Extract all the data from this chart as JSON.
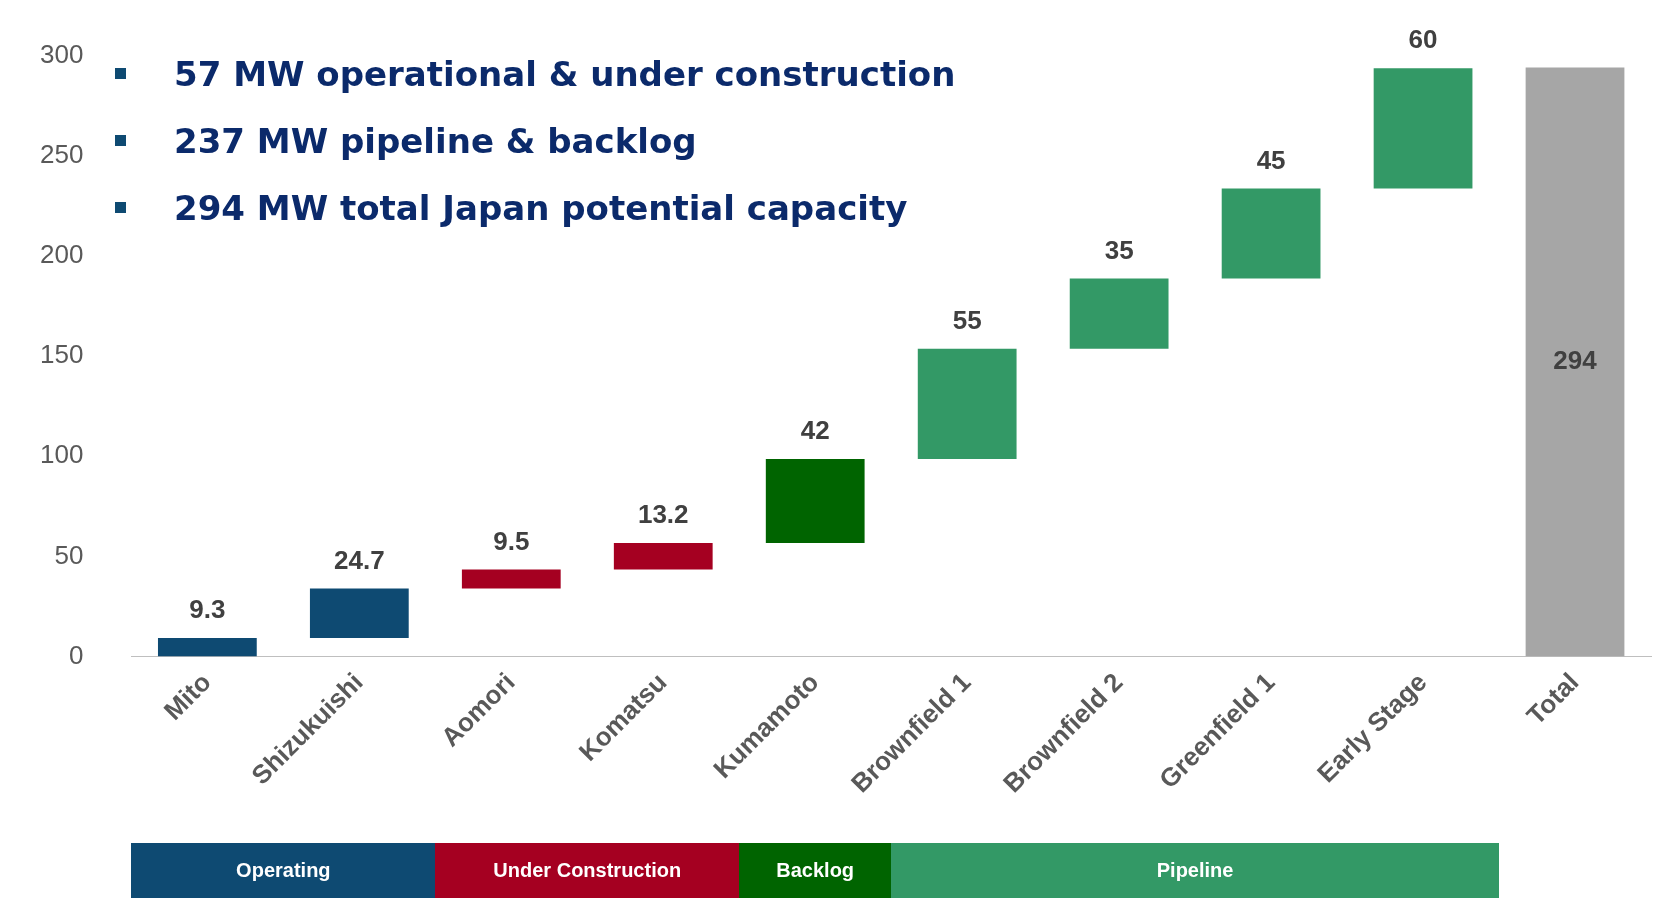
{
  "chart_data": {
    "type": "bar",
    "categories": [
      "Mito",
      "Shizukuishi",
      "Aomori",
      "Komatsu",
      "Kumamoto",
      "Brownfield 1",
      "Brownfield 2",
      "Greenfield 1",
      "Early Stage",
      "Total"
    ],
    "base": [
      0,
      9.3,
      34,
      43.5,
      56.7,
      98.7,
      153.7,
      188.7,
      233.7,
      0
    ],
    "values": [
      9.3,
      24.7,
      9.5,
      13.2,
      42,
      55,
      35,
      45,
      60,
      294
    ],
    "colors": [
      "#0e4a72",
      "#0e4a72",
      "#a50021",
      "#a50021",
      "#006400",
      "#339966",
      "#339966",
      "#339966",
      "#339966",
      "#a6a6a6"
    ],
    "ylim": [
      0,
      300
    ],
    "yticks": [
      0,
      50,
      100,
      150,
      200,
      250,
      300
    ],
    "data_labels": true,
    "annotations": [
      "57 MW operational & under construction",
      "237 MW pipeline & backlog",
      "294 MW total Japan potential capacity",
      "Operating",
      "Under Construction",
      "Backlog",
      "Pipeline"
    ]
  }
}
